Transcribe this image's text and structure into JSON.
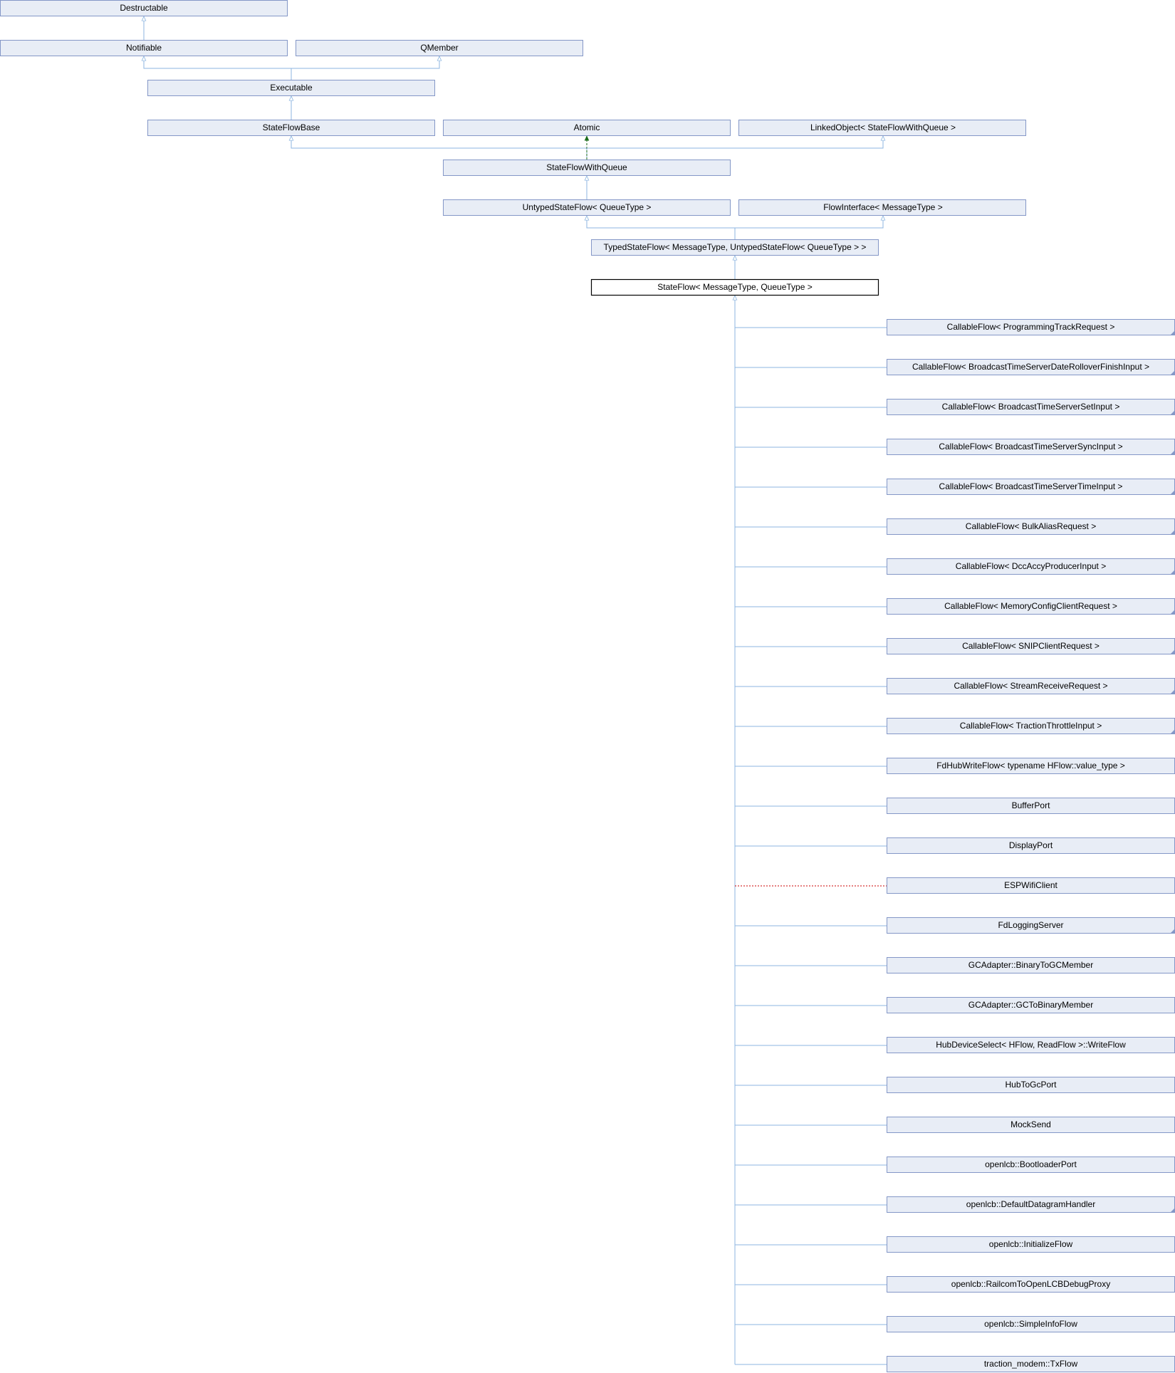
{
  "diagram": {
    "nodes": [
      {
        "id": "destructable",
        "label": "Destructable"
      },
      {
        "id": "notifiable",
        "label": "Notifiable"
      },
      {
        "id": "qmember",
        "label": "QMember"
      },
      {
        "id": "executable",
        "label": "Executable"
      },
      {
        "id": "stateflowbase",
        "label": "StateFlowBase"
      },
      {
        "id": "atomic",
        "label": "Atomic"
      },
      {
        "id": "linkedobject",
        "label": "LinkedObject< StateFlowWithQueue >"
      },
      {
        "id": "stateflowwithqueue",
        "label": "StateFlowWithQueue"
      },
      {
        "id": "untypedstateflow",
        "label": "UntypedStateFlow< QueueType >"
      },
      {
        "id": "flowinterface",
        "label": "FlowInterface< MessageType >"
      },
      {
        "id": "typedstateflow",
        "label": "TypedStateFlow< MessageType, UntypedStateFlow< QueueType > >"
      },
      {
        "id": "stateflow",
        "label": "StateFlow< MessageType, QueueType >",
        "current": true
      }
    ],
    "children": [
      {
        "label": "CallableFlow< ProgrammingTrackRequest >",
        "more": true
      },
      {
        "label": "CallableFlow< BroadcastTimeServerDateRolloverFinishInput >",
        "more": true
      },
      {
        "label": "CallableFlow< BroadcastTimeServerSetInput >",
        "more": true
      },
      {
        "label": "CallableFlow< BroadcastTimeServerSyncInput >",
        "more": true
      },
      {
        "label": "CallableFlow< BroadcastTimeServerTimeInput >",
        "more": true
      },
      {
        "label": "CallableFlow< BulkAliasRequest >",
        "more": true
      },
      {
        "label": "CallableFlow< DccAccyProducerInput >",
        "more": true
      },
      {
        "label": "CallableFlow< MemoryConfigClientRequest >",
        "more": true
      },
      {
        "label": "CallableFlow< SNIPClientRequest >",
        "more": true
      },
      {
        "label": "CallableFlow< StreamReceiveRequest >",
        "more": true
      },
      {
        "label": "CallableFlow< TractionThrottleInput >",
        "more": true
      },
      {
        "label": "FdHubWriteFlow< typename HFlow::value_type >",
        "more": false
      },
      {
        "label": "BufferPort",
        "more": false
      },
      {
        "label": "DisplayPort",
        "more": false
      },
      {
        "label": "ESPWifiClient",
        "more": false,
        "private": true
      },
      {
        "label": "FdLoggingServer",
        "more": true
      },
      {
        "label": "GCAdapter::BinaryToGCMember",
        "more": false
      },
      {
        "label": "GCAdapter::GCToBinaryMember",
        "more": false
      },
      {
        "label": "HubDeviceSelect< HFlow, ReadFlow >::WriteFlow",
        "more": false
      },
      {
        "label": "HubToGcPort",
        "more": false
      },
      {
        "label": "MockSend",
        "more": false
      },
      {
        "label": "openlcb::BootloaderPort",
        "more": false
      },
      {
        "label": "openlcb::DefaultDatagramHandler",
        "more": true
      },
      {
        "label": "openlcb::InitializeFlow",
        "more": false
      },
      {
        "label": "openlcb::RailcomToOpenLCBDebugProxy",
        "more": false
      },
      {
        "label": "openlcb::SimpleInfoFlow",
        "more": false
      },
      {
        "label": "traction_modem::TxFlow",
        "more": false
      }
    ]
  }
}
